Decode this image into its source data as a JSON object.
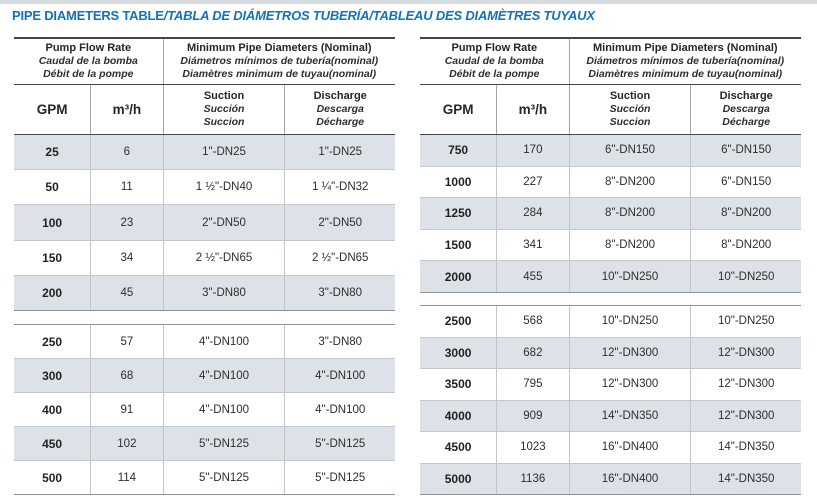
{
  "title": {
    "main": "PIPE DIAMETERS TABLE",
    "rest": "/TABLA DE DIÁMETROS TUBERÍA/TABLEAU DES DIAMÈTRES TUYAUX"
  },
  "colors": {
    "title_blue": "#1173b8",
    "row_shade": "#dce2e7"
  },
  "header": {
    "flow": [
      "Pump Flow Rate",
      "Caudal de la bomba",
      "Débit de la pompe"
    ],
    "diameters": [
      "Minimum Pipe Diameters (Nominal)",
      "Diámetros mínimos de tubería(nominal)",
      "Diamètres minimum de tuyau(nominal)"
    ],
    "gpm": "GPM",
    "m3h": "m³/h",
    "suction": [
      "Suction",
      "Succión",
      "Succion"
    ],
    "discharge": [
      "Discharge",
      "Descarga",
      "Décharge"
    ]
  },
  "left": {
    "block1": [
      {
        "gpm": "25",
        "m3h": "6",
        "suction": "1\"-DN25",
        "discharge": "1\"-DN25"
      },
      {
        "gpm": "50",
        "m3h": "11",
        "suction": "1 ½\"-DN40",
        "discharge": "1 ¼\"-DN32"
      },
      {
        "gpm": "100",
        "m3h": "23",
        "suction": "2\"-DN50",
        "discharge": "2\"-DN50"
      },
      {
        "gpm": "150",
        "m3h": "34",
        "suction": "2 ½\"-DN65",
        "discharge": "2 ½\"-DN65"
      },
      {
        "gpm": "200",
        "m3h": "45",
        "suction": "3\"-DN80",
        "discharge": "3\"-DN80"
      }
    ],
    "block2": [
      {
        "gpm": "250",
        "m3h": "57",
        "suction": "4\"-DN100",
        "discharge": "3\"-DN80"
      },
      {
        "gpm": "300",
        "m3h": "68",
        "suction": "4\"-DN100",
        "discharge": "4\"-DN100"
      },
      {
        "gpm": "400",
        "m3h": "91",
        "suction": "4\"-DN100",
        "discharge": "4\"-DN100"
      },
      {
        "gpm": "450",
        "m3h": "102",
        "suction": "5\"-DN125",
        "discharge": "5\"-DN125"
      },
      {
        "gpm": "500",
        "m3h": "114",
        "suction": "5\"-DN125",
        "discharge": "5\"-DN125"
      }
    ]
  },
  "right": {
    "block1": [
      {
        "gpm": "750",
        "m3h": "170",
        "suction": "6\"-DN150",
        "discharge": "6\"-DN150"
      },
      {
        "gpm": "1000",
        "m3h": "227",
        "suction": "8\"-DN200",
        "discharge": "6\"-DN150"
      },
      {
        "gpm": "1250",
        "m3h": "284",
        "suction": "8\"-DN200",
        "discharge": "8\"-DN200"
      },
      {
        "gpm": "1500",
        "m3h": "341",
        "suction": "8\"-DN200",
        "discharge": "8\"-DN200"
      },
      {
        "gpm": "2000",
        "m3h": "455",
        "suction": "10\"-DN250",
        "discharge": "10\"-DN250"
      }
    ],
    "block2": [
      {
        "gpm": "2500",
        "m3h": "568",
        "suction": "10\"-DN250",
        "discharge": "10\"-DN250"
      },
      {
        "gpm": "3000",
        "m3h": "682",
        "suction": "12\"-DN300",
        "discharge": "12\"-DN300"
      },
      {
        "gpm": "3500",
        "m3h": "795",
        "suction": "12\"-DN300",
        "discharge": "12\"-DN300"
      },
      {
        "gpm": "4000",
        "m3h": "909",
        "suction": "14\"-DN350",
        "discharge": "12\"-DN300"
      },
      {
        "gpm": "4500",
        "m3h": "1023",
        "suction": "16\"-DN400",
        "discharge": "14\"-DN350"
      },
      {
        "gpm": "5000",
        "m3h": "1136",
        "suction": "16\"-DN400",
        "discharge": "14\"-DN350"
      }
    ]
  }
}
